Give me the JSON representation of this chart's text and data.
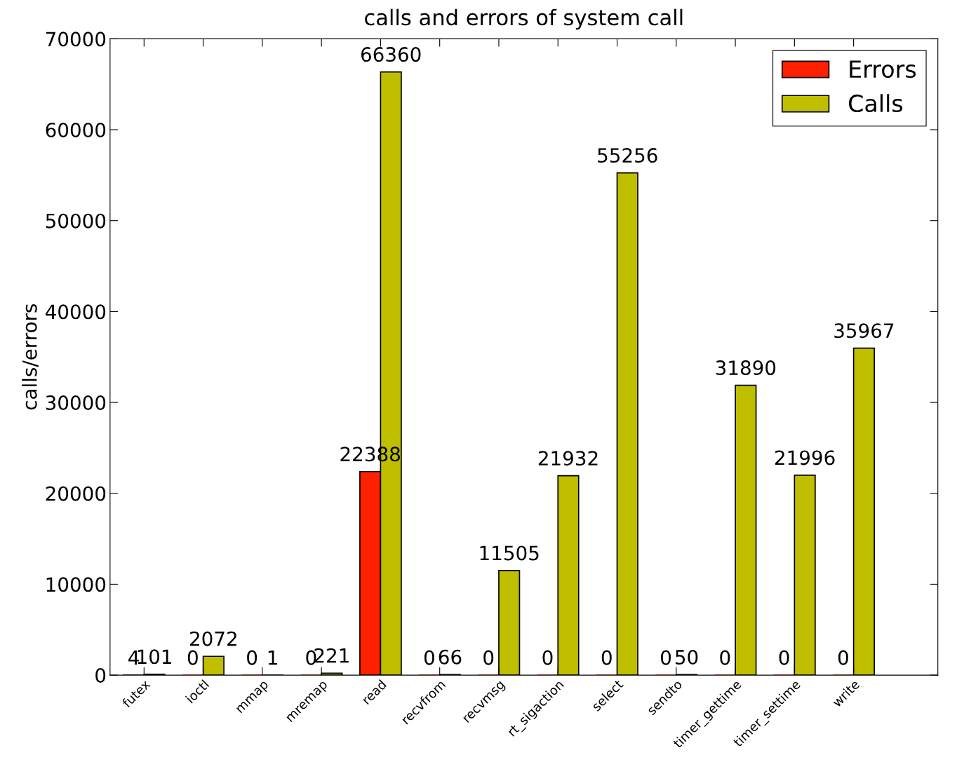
{
  "chart_data": {
    "type": "bar",
    "title": "calls and errors of system call",
    "ylabel": "calls/errors",
    "categories": [
      "futex",
      "ioctl",
      "mmap",
      "mremap",
      "read",
      "recvfrom",
      "recvmsg",
      "rt_sigaction",
      "select",
      "sendto",
      "timer_gettime",
      "timer_settime",
      "write"
    ],
    "series": [
      {
        "name": "Errors",
        "color": "#ff2000",
        "values": [
          4,
          0,
          0,
          0,
          22388,
          0,
          0,
          0,
          0,
          0,
          0,
          0,
          0
        ]
      },
      {
        "name": "Calls",
        "color": "#bfbf00",
        "values": [
          101,
          2072,
          1,
          221,
          66360,
          66,
          11505,
          21932,
          55256,
          50,
          31890,
          21996,
          35967
        ]
      }
    ],
    "ylim": [
      0,
      70000
    ],
    "yticks": [
      0,
      10000,
      20000,
      30000,
      40000,
      50000,
      60000,
      70000
    ],
    "data_labels": true,
    "legend": "top right",
    "grid": false
  }
}
